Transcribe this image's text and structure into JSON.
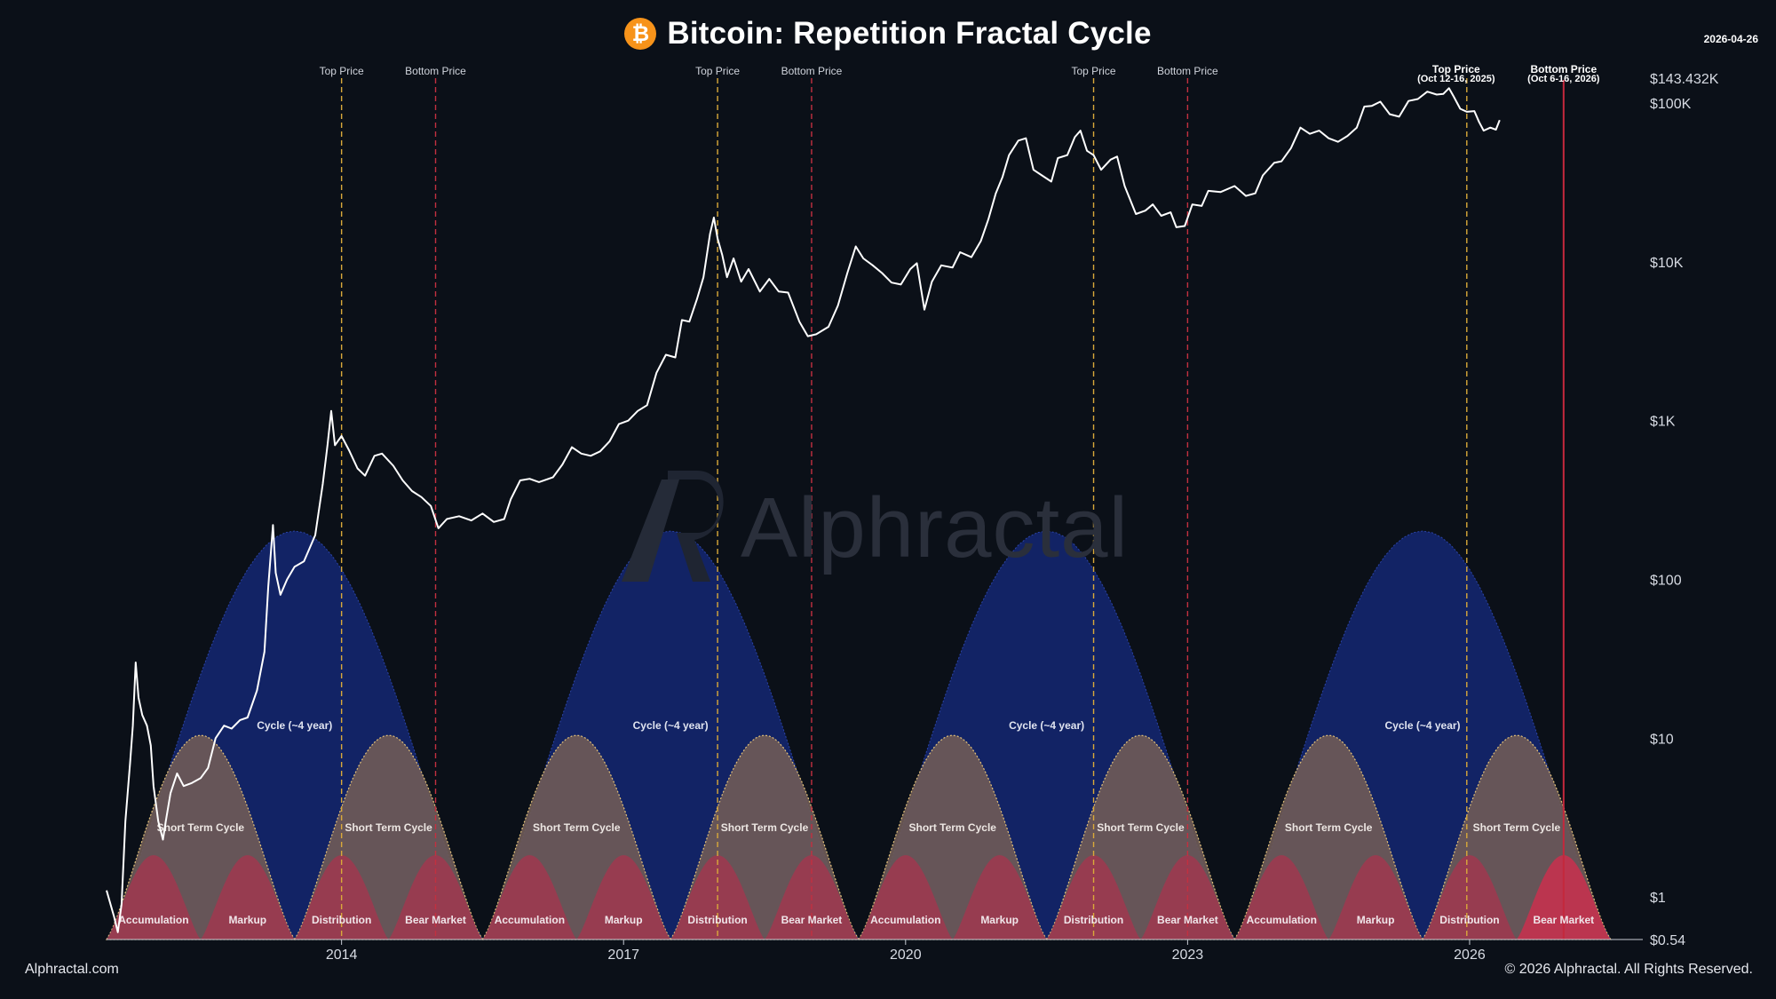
{
  "header": {
    "title": "Bitcoin: Repetition Fractal Cycle",
    "logo_glyph": "₿",
    "date": "2026-04-26"
  },
  "footer": {
    "left": "Alphractal.com",
    "right": "© 2026 Alphractal. All Rights Reserved."
  },
  "watermark": {
    "text": "Alphractal"
  },
  "colors": {
    "background": "#0b1018",
    "price_line": "#ffffff",
    "cycle_fill": "#13266e",
    "short_cycle_fill": "#6e5a57",
    "phase_fill": "#9a3b50",
    "phase_highlight": "#c0344f",
    "top_line": "#d9a93a",
    "bottom_line": "#c23040",
    "bitcoin_orange": "#f7931a",
    "axis_text": "#d7dbe3"
  },
  "chart_data": {
    "type": "line",
    "title": "Bitcoin: Repetition Fractal Cycle",
    "y_scale": "log",
    "ylim": [
      0.54,
      143432
    ],
    "x_range": [
      2011.5,
      2027.2
    ],
    "x_ticks": [
      {
        "value": 2014,
        "label": "2014"
      },
      {
        "value": 2017,
        "label": "2017"
      },
      {
        "value": 2020,
        "label": "2020"
      },
      {
        "value": 2023,
        "label": "2023"
      },
      {
        "value": 2026,
        "label": "2026"
      }
    ],
    "y_ticks": [
      {
        "value": 143432,
        "label": "$143.432K"
      },
      {
        "value": 100000,
        "label": "$100K"
      },
      {
        "value": 10000,
        "label": "$10K"
      },
      {
        "value": 1000,
        "label": "$1K"
      },
      {
        "value": 100,
        "label": "$100"
      },
      {
        "value": 10,
        "label": "$10"
      },
      {
        "value": 1,
        "label": "$1"
      },
      {
        "value": 0.54,
        "label": "$0.54"
      }
    ],
    "cycle_start": 2011.5,
    "cycle_length": 4.0,
    "cycle_count": 4,
    "cycles": [
      {
        "label": "Cycle (~4 year)"
      },
      {
        "label": "Cycle (~4 year)"
      },
      {
        "label": "Cycle (~4 year)"
      },
      {
        "label": "Cycle (~4 year)"
      }
    ],
    "short_cycle_label": "Short Term Cycle",
    "phases": [
      "Accumulation",
      "Markup",
      "Distribution",
      "Bear Market"
    ],
    "vertical_lines": [
      {
        "x": 2014.0,
        "kind": "top",
        "label": "Top Price"
      },
      {
        "x": 2015.0,
        "kind": "bottom",
        "label": "Bottom Price"
      },
      {
        "x": 2018.0,
        "kind": "top",
        "label": "Top Price"
      },
      {
        "x": 2019.0,
        "kind": "bottom",
        "label": "Bottom Price"
      },
      {
        "x": 2022.0,
        "kind": "top",
        "label": "Top Price"
      },
      {
        "x": 2023.0,
        "kind": "bottom",
        "label": "Bottom Price"
      },
      {
        "x": 2025.97,
        "kind": "top",
        "label": "Top Price"
      },
      {
        "x": 2027.0,
        "kind": "bottom_current",
        "label": "Bottom Price"
      }
    ],
    "annotations": [
      {
        "x": 2025.97,
        "text": "Top Price",
        "sub": "(Oct 12-16, 2025)"
      },
      {
        "x": 2027.0,
        "text": "Bottom Price",
        "sub": "(Oct 6-16, 2026)"
      }
    ],
    "price_series": {
      "name": "BTC Price",
      "points": [
        [
          2011.5,
          1.1
        ],
        [
          2011.58,
          0.75
        ],
        [
          2011.62,
          0.6
        ],
        [
          2011.66,
          0.9
        ],
        [
          2011.7,
          3.0
        ],
        [
          2011.75,
          7.0
        ],
        [
          2011.78,
          12.0
        ],
        [
          2011.81,
          30.0
        ],
        [
          2011.84,
          18.0
        ],
        [
          2011.88,
          14.0
        ],
        [
          2011.93,
          12.0
        ],
        [
          2011.97,
          9.0
        ],
        [
          2012.0,
          5.0
        ],
        [
          2012.05,
          3.0
        ],
        [
          2012.1,
          2.3
        ],
        [
          2012.13,
          3.0
        ],
        [
          2012.18,
          4.5
        ],
        [
          2012.25,
          6.0
        ],
        [
          2012.32,
          5.0
        ],
        [
          2012.4,
          5.2
        ],
        [
          2012.5,
          5.6
        ],
        [
          2012.58,
          6.5
        ],
        [
          2012.66,
          10.0
        ],
        [
          2012.75,
          12.0
        ],
        [
          2012.83,
          11.5
        ],
        [
          2012.92,
          13.0
        ],
        [
          2013.0,
          13.5
        ],
        [
          2013.1,
          20.0
        ],
        [
          2013.18,
          35.0
        ],
        [
          2013.22,
          90.0
        ],
        [
          2013.27,
          220.0
        ],
        [
          2013.3,
          110.0
        ],
        [
          2013.35,
          80.0
        ],
        [
          2013.42,
          100.0
        ],
        [
          2013.5,
          120.0
        ],
        [
          2013.6,
          130.0
        ],
        [
          2013.72,
          190.0
        ],
        [
          2013.8,
          400.0
        ],
        [
          2013.85,
          700.0
        ],
        [
          2013.89,
          1150.0
        ],
        [
          2013.93,
          700.0
        ],
        [
          2014.0,
          800.0
        ],
        [
          2014.08,
          650.0
        ],
        [
          2014.17,
          500.0
        ],
        [
          2014.25,
          450.0
        ],
        [
          2014.35,
          600.0
        ],
        [
          2014.43,
          620.0
        ],
        [
          2014.55,
          520.0
        ],
        [
          2014.65,
          420.0
        ],
        [
          2014.75,
          360.0
        ],
        [
          2014.85,
          330.0
        ],
        [
          2014.95,
          290.0
        ],
        [
          2015.03,
          210.0
        ],
        [
          2015.12,
          240.0
        ],
        [
          2015.25,
          250.0
        ],
        [
          2015.38,
          235.0
        ],
        [
          2015.5,
          260.0
        ],
        [
          2015.62,
          230.0
        ],
        [
          2015.73,
          240.0
        ],
        [
          2015.8,
          320.0
        ],
        [
          2015.9,
          420.0
        ],
        [
          2016.0,
          430.0
        ],
        [
          2016.1,
          410.0
        ],
        [
          2016.25,
          440.0
        ],
        [
          2016.35,
          530.0
        ],
        [
          2016.45,
          680.0
        ],
        [
          2016.55,
          620.0
        ],
        [
          2016.65,
          600.0
        ],
        [
          2016.75,
          640.0
        ],
        [
          2016.85,
          740.0
        ],
        [
          2016.95,
          950.0
        ],
        [
          2017.05,
          1000.0
        ],
        [
          2017.15,
          1150.0
        ],
        [
          2017.25,
          1250.0
        ],
        [
          2017.35,
          2000.0
        ],
        [
          2017.45,
          2600.0
        ],
        [
          2017.55,
          2500.0
        ],
        [
          2017.62,
          4300.0
        ],
        [
          2017.7,
          4200.0
        ],
        [
          2017.78,
          5800.0
        ],
        [
          2017.85,
          8000.0
        ],
        [
          2017.92,
          15000.0
        ],
        [
          2017.96,
          19000.0
        ],
        [
          2018.0,
          14000.0
        ],
        [
          2018.05,
          11000.0
        ],
        [
          2018.1,
          8000.0
        ],
        [
          2018.17,
          10500.0
        ],
        [
          2018.25,
          7500.0
        ],
        [
          2018.33,
          9000.0
        ],
        [
          2018.45,
          6500.0
        ],
        [
          2018.55,
          7800.0
        ],
        [
          2018.65,
          6500.0
        ],
        [
          2018.75,
          6400.0
        ],
        [
          2018.87,
          4200.0
        ],
        [
          2018.96,
          3400.0
        ],
        [
          2019.05,
          3500.0
        ],
        [
          2019.18,
          3900.0
        ],
        [
          2019.28,
          5300.0
        ],
        [
          2019.38,
          8500.0
        ],
        [
          2019.47,
          12500.0
        ],
        [
          2019.55,
          10500.0
        ],
        [
          2019.65,
          9500.0
        ],
        [
          2019.75,
          8500.0
        ],
        [
          2019.85,
          7400.0
        ],
        [
          2019.95,
          7200.0
        ],
        [
          2020.05,
          9000.0
        ],
        [
          2020.12,
          9800.0
        ],
        [
          2020.2,
          5000.0
        ],
        [
          2020.28,
          7500.0
        ],
        [
          2020.38,
          9500.0
        ],
        [
          2020.5,
          9200.0
        ],
        [
          2020.58,
          11500.0
        ],
        [
          2020.7,
          10700.0
        ],
        [
          2020.8,
          13500.0
        ],
        [
          2020.88,
          18500.0
        ],
        [
          2020.96,
          27000.0
        ],
        [
          2021.03,
          34000.0
        ],
        [
          2021.1,
          47000.0
        ],
        [
          2021.2,
          58000.0
        ],
        [
          2021.28,
          60000.0
        ],
        [
          2021.36,
          38000.0
        ],
        [
          2021.45,
          35000.0
        ],
        [
          2021.55,
          32000.0
        ],
        [
          2021.62,
          45000.0
        ],
        [
          2021.72,
          47000.0
        ],
        [
          2021.8,
          61000.0
        ],
        [
          2021.86,
          67000.0
        ],
        [
          2021.93,
          50000.0
        ],
        [
          2022.0,
          47000.0
        ],
        [
          2022.08,
          38000.0
        ],
        [
          2022.18,
          44000.0
        ],
        [
          2022.25,
          46000.0
        ],
        [
          2022.33,
          30000.0
        ],
        [
          2022.45,
          20000.0
        ],
        [
          2022.55,
          21000.0
        ],
        [
          2022.63,
          23000.0
        ],
        [
          2022.72,
          19500.0
        ],
        [
          2022.82,
          20500.0
        ],
        [
          2022.88,
          16500.0
        ],
        [
          2022.97,
          16800.0
        ],
        [
          2023.05,
          23000.0
        ],
        [
          2023.15,
          22500.0
        ],
        [
          2023.22,
          28000.0
        ],
        [
          2023.35,
          27500.0
        ],
        [
          2023.5,
          30000.0
        ],
        [
          2023.62,
          26000.0
        ],
        [
          2023.72,
          27000.0
        ],
        [
          2023.8,
          35000.0
        ],
        [
          2023.92,
          42000.0
        ],
        [
          2024.0,
          43000.0
        ],
        [
          2024.1,
          52000.0
        ],
        [
          2024.2,
          70000.0
        ],
        [
          2024.3,
          64000.0
        ],
        [
          2024.4,
          67000.0
        ],
        [
          2024.5,
          60000.0
        ],
        [
          2024.6,
          57000.0
        ],
        [
          2024.7,
          62000.0
        ],
        [
          2024.8,
          70000.0
        ],
        [
          2024.88,
          95000.0
        ],
        [
          2024.96,
          96000.0
        ],
        [
          2025.05,
          102000.0
        ],
        [
          2025.15,
          85000.0
        ],
        [
          2025.25,
          82000.0
        ],
        [
          2025.35,
          103000.0
        ],
        [
          2025.45,
          106000.0
        ],
        [
          2025.55,
          118000.0
        ],
        [
          2025.65,
          113000.0
        ],
        [
          2025.72,
          114000.0
        ],
        [
          2025.78,
          124000.0
        ],
        [
          2025.83,
          110000.0
        ],
        [
          2025.9,
          92000.0
        ],
        [
          2025.97,
          88000.0
        ],
        [
          2026.05,
          89000.0
        ],
        [
          2026.1,
          76000.0
        ],
        [
          2026.15,
          67000.0
        ],
        [
          2026.22,
          70000.0
        ],
        [
          2026.28,
          68000.0
        ],
        [
          2026.32,
          78000.0
        ]
      ]
    }
  }
}
